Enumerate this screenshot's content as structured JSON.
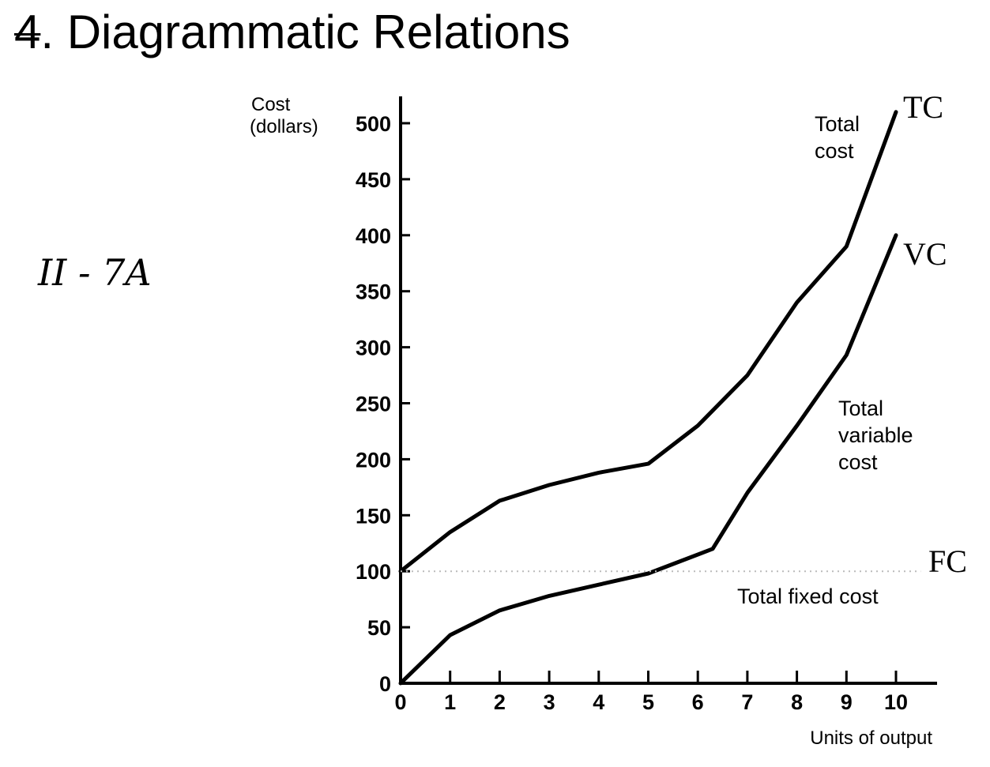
{
  "page": {
    "title_number": "4",
    "title_text": ". Diagrammatic Relations",
    "handwritten_note": "II - 7A"
  },
  "chart_data": {
    "type": "line",
    "xlabel": "Units of output",
    "ylabel_line1": "Cost",
    "ylabel_line2": "(dollars)",
    "xlim": [
      0,
      10
    ],
    "ylim": [
      0,
      500
    ],
    "x_ticks": [
      0,
      1,
      2,
      3,
      4,
      5,
      6,
      7,
      8,
      9,
      10
    ],
    "y_ticks": [
      0,
      50,
      100,
      150,
      200,
      250,
      300,
      350,
      400,
      450,
      500
    ],
    "series": [
      {
        "name": "TC",
        "description": "Total cost",
        "x": [
          0,
          1,
          2,
          3,
          4,
          5,
          6,
          7,
          8,
          9,
          10
        ],
        "y": [
          100,
          135,
          163,
          177,
          188,
          196,
          230,
          275,
          340,
          390,
          510
        ]
      },
      {
        "name": "VC",
        "description": "Total variable cost",
        "x": [
          0,
          1,
          2,
          3,
          4,
          5,
          6.3,
          7,
          8,
          9,
          10
        ],
        "y": [
          0,
          43,
          65,
          78,
          88,
          98,
          120,
          170,
          230,
          293,
          400
        ]
      },
      {
        "name": "FC",
        "description": "Total fixed cost",
        "x": [
          0,
          10.5
        ],
        "y": [
          100,
          100
        ],
        "style": "dotted"
      }
    ],
    "annotations": {
      "tc_lines": [
        "Total",
        "cost"
      ],
      "vc_lines": [
        "Total",
        "variable",
        "cost"
      ],
      "fc_text": "Total fixed cost"
    },
    "colors": {
      "line": "#000000",
      "fc_line": "#bbbbbb"
    }
  }
}
